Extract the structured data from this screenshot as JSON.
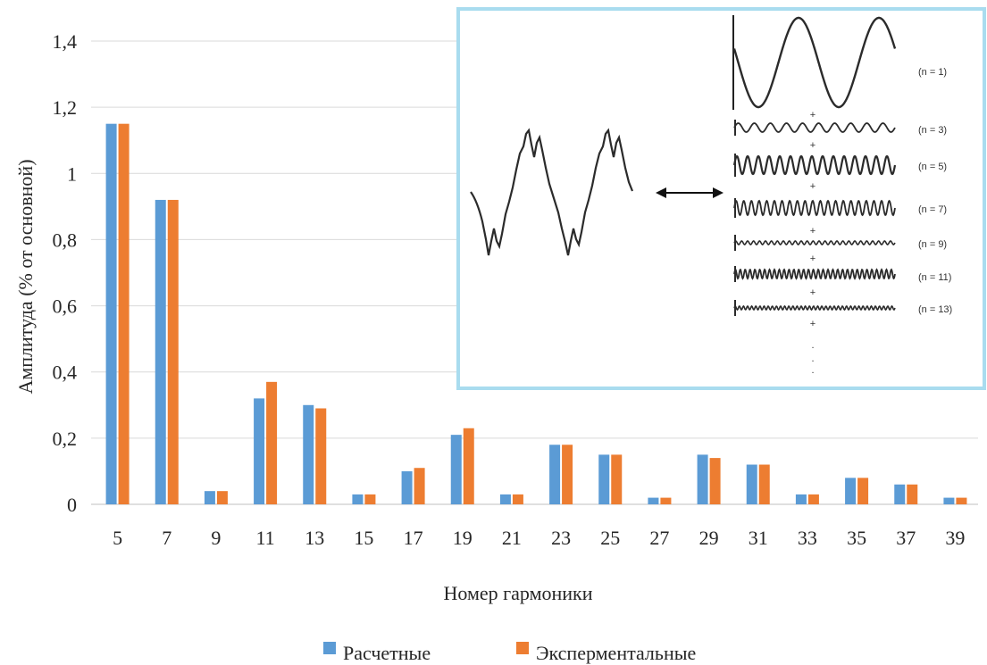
{
  "chart_data": {
    "type": "bar",
    "categories": [
      "5",
      "7",
      "9",
      "11",
      "13",
      "15",
      "17",
      "19",
      "21",
      "23",
      "25",
      "27",
      "29",
      "31",
      "33",
      "35",
      "37",
      "39"
    ],
    "series": [
      {
        "name": "Расчетные",
        "color": "#5b9bd5",
        "values": [
          1.15,
          0.92,
          0.04,
          0.32,
          0.3,
          0.03,
          0.1,
          0.21,
          0.03,
          0.18,
          0.15,
          0.02,
          0.15,
          0.12,
          0.03,
          0.08,
          0.06,
          0.02
        ]
      },
      {
        "name": "Эксперментальные",
        "color": "#ed7d31",
        "values": [
          1.15,
          0.92,
          0.04,
          0.37,
          0.29,
          0.03,
          0.11,
          0.23,
          0.03,
          0.18,
          0.15,
          0.02,
          0.14,
          0.12,
          0.03,
          0.08,
          0.06,
          0.02
        ]
      }
    ],
    "xlabel": "Номер гармоники",
    "ylabel": "Амплитуда (% от основной)",
    "ylim": [
      0,
      1.4
    ],
    "yticks": [
      "0",
      "0,2",
      "0,4",
      "0,6",
      "0,8",
      "1",
      "1,2",
      "1,4"
    ],
    "grid": true,
    "legend_position": "bottom"
  },
  "inset": {
    "border_color": "#a9dcef",
    "harmonic_labels": [
      "(n = 1)",
      "(n = 3)",
      "(n = 5)",
      "(n = 7)",
      "(n = 9)",
      "(n = 11)",
      "(n = 13)"
    ],
    "plus_sign": "+",
    "ellipsis_dot": "."
  }
}
